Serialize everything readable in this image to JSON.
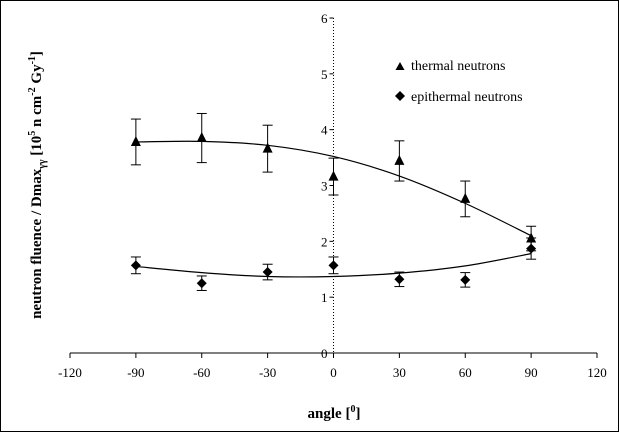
{
  "chart_data": {
    "type": "scatter",
    "xlabel": "angle [°]",
    "xlabel_main": "angle [",
    "xlabel_sup": "0",
    "xlabel_close": "]",
    "ylabel_main": "neutron fluence / Dmax",
    "ylabel_sub": "γγ",
    "ylabel_unit_a": " [10",
    "ylabel_unit_b": " n cm",
    "ylabel_unit_c": " Gy",
    "ylabel_unit_d": "]",
    "ylabel_sup1": "5",
    "ylabel_sup2": "-2",
    "ylabel_sup3": "-1",
    "xlim": [
      -120,
      120
    ],
    "ylim": [
      0,
      6
    ],
    "xticks": [
      -120,
      -90,
      -60,
      -30,
      0,
      30,
      60,
      90,
      120
    ],
    "yticks": [
      0,
      1,
      2,
      3,
      4,
      5,
      6
    ],
    "grid": false,
    "legend_position": "top-right",
    "series": [
      {
        "name": "thermal neutrons",
        "marker": "triangle",
        "x": [
          -90,
          -60,
          -30,
          0,
          30,
          60,
          90
        ],
        "y": [
          3.78,
          3.85,
          3.66,
          3.16,
          3.44,
          2.76,
          2.05
        ],
        "err": [
          0.41,
          0.44,
          0.42,
          0.33,
          0.36,
          0.32,
          0.22
        ],
        "fit": [
          [
            -90,
            3.78
          ],
          [
            -60,
            3.79
          ],
          [
            -30,
            3.72
          ],
          [
            0,
            3.52
          ],
          [
            30,
            3.17
          ],
          [
            60,
            2.68
          ],
          [
            90,
            2.1
          ]
        ]
      },
      {
        "name": "epithermal neutrons",
        "marker": "diamond",
        "x": [
          -90,
          -60,
          -30,
          0,
          30,
          60,
          90
        ],
        "y": [
          1.57,
          1.25,
          1.45,
          1.57,
          1.32,
          1.31,
          1.87
        ],
        "err": [
          0.15,
          0.13,
          0.14,
          0.15,
          0.13,
          0.13,
          0.19
        ],
        "fit": [
          [
            -90,
            1.55
          ],
          [
            -60,
            1.44
          ],
          [
            -30,
            1.37
          ],
          [
            0,
            1.37
          ],
          [
            30,
            1.43
          ],
          [
            60,
            1.56
          ],
          [
            90,
            1.78
          ]
        ]
      }
    ]
  }
}
